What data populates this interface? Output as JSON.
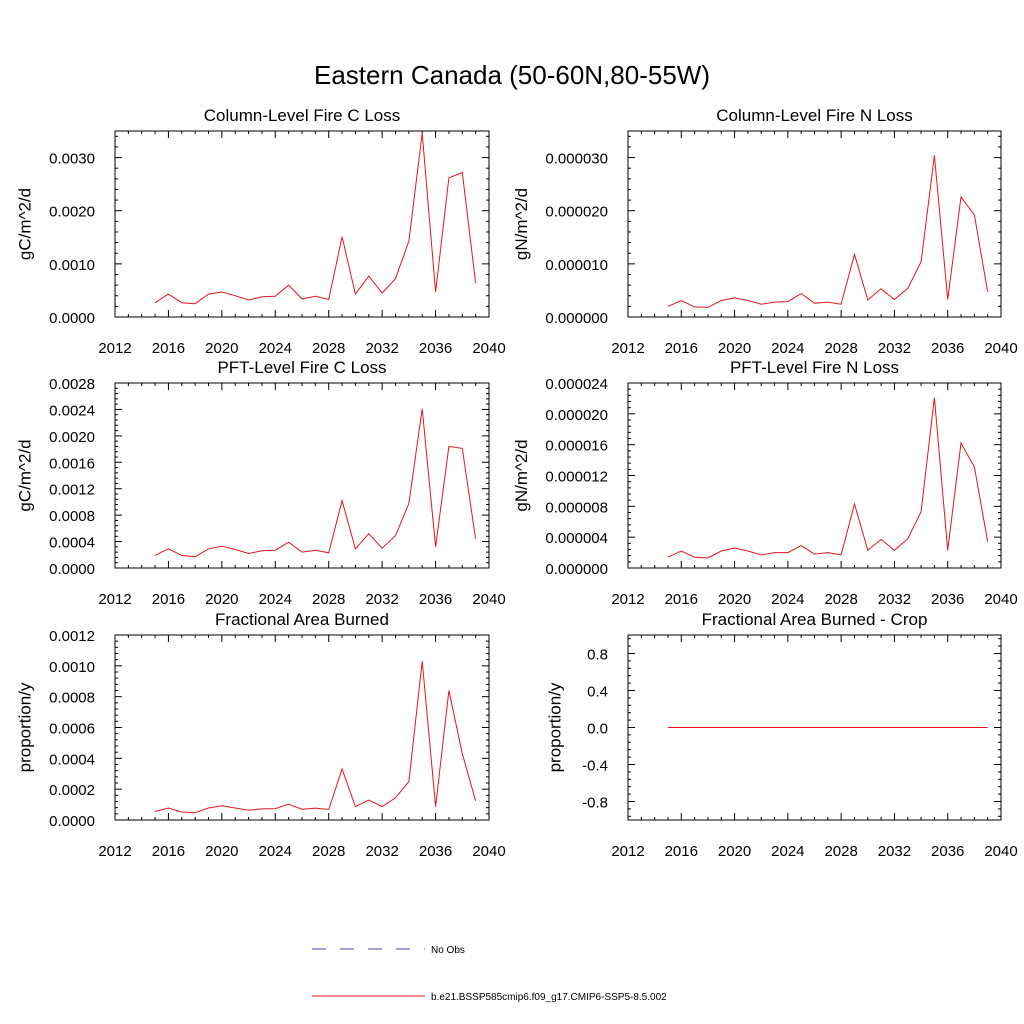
{
  "title": "Eastern Canada (50-60N,80-55W)",
  "legend": [
    {
      "label": "No Obs",
      "color": "#4a4aa8",
      "style": "dashed"
    },
    {
      "label": "b.e21.BSSP585cmip6.f09_g17.CMIP6-SSP5-8.5.002",
      "color": "#e8141b",
      "style": "solid"
    }
  ],
  "chart_data": [
    {
      "type": "line",
      "title": "Column-Level Fire C Loss",
      "ylabel": "gC/m^2/d",
      "xlim": [
        2012,
        2040
      ],
      "ylim": [
        0,
        0.0035
      ],
      "x_ticks": [
        2012,
        2016,
        2020,
        2024,
        2028,
        2032,
        2036,
        2040
      ],
      "x_ticklabels": [
        "2012",
        "2016",
        "2020",
        "2024",
        "2028",
        "2032",
        "2036",
        "2040"
      ],
      "y_ticks": [
        0,
        0.001,
        0.002,
        0.003
      ],
      "y_ticklabels": [
        "0.0000",
        "0.0010",
        "0.0020",
        "0.0030"
      ],
      "x": [
        2015,
        2016,
        2017,
        2018,
        2019,
        2020,
        2021,
        2022,
        2023,
        2024,
        2025,
        2026,
        2027,
        2028,
        2029,
        2030,
        2031,
        2032,
        2033,
        2034,
        2035,
        2036,
        2037,
        2038,
        2039
      ],
      "series": [
        {
          "name": "b.e21.BSSP585cmip6.f09_g17.CMIP6-SSP5-8.5.002",
          "color": "#e8141b",
          "values": [
            0.00027,
            0.00043,
            0.00027,
            0.00025,
            0.00043,
            0.00047,
            0.0004,
            0.00032,
            0.00038,
            0.00039,
            0.0006,
            0.00034,
            0.00039,
            0.00033,
            0.00151,
            0.00043,
            0.00077,
            0.00045,
            0.00072,
            0.00143,
            0.00346,
            0.00047,
            0.00262,
            0.00272,
            0.00064
          ]
        }
      ]
    },
    {
      "type": "line",
      "title": "Column-Level Fire N Loss",
      "ylabel": "gN/m^2/d",
      "xlim": [
        2012,
        2040
      ],
      "ylim": [
        0,
        3.5e-05
      ],
      "x_ticks": [
        2012,
        2016,
        2020,
        2024,
        2028,
        2032,
        2036,
        2040
      ],
      "x_ticklabels": [
        "2012",
        "2016",
        "2020",
        "2024",
        "2028",
        "2032",
        "2036",
        "2040"
      ],
      "y_ticks": [
        0,
        1e-05,
        2e-05,
        3e-05
      ],
      "y_ticklabels": [
        "0.000000",
        "0.000010",
        "0.000020",
        "0.000030"
      ],
      "x": [
        2015,
        2016,
        2017,
        2018,
        2019,
        2020,
        2021,
        2022,
        2023,
        2024,
        2025,
        2026,
        2027,
        2028,
        2029,
        2030,
        2031,
        2032,
        2033,
        2034,
        2035,
        2036,
        2037,
        2038,
        2039
      ],
      "series": [
        {
          "name": "b.e21.BSSP585cmip6.f09_g17.CMIP6-SSP5-8.5.002",
          "color": "#e8141b",
          "values": [
            2e-06,
            3.1e-06,
            1.9e-06,
            1.8e-06,
            3.1e-06,
            3.6e-06,
            3.1e-06,
            2.4e-06,
            2.8e-06,
            2.9e-06,
            4.4e-06,
            2.6e-06,
            2.8e-06,
            2.4e-06,
            1.18e-05,
            3.2e-06,
            5.3e-06,
            3.3e-06,
            5.4e-06,
            1.04e-05,
            3.04e-05,
            3.3e-06,
            2.26e-05,
            1.92e-05,
            4.7e-06
          ]
        }
      ]
    },
    {
      "type": "line",
      "title": "PFT-Level Fire C Loss",
      "ylabel": "gC/m^2/d",
      "xlim": [
        2012,
        2040
      ],
      "ylim": [
        0,
        0.0028
      ],
      "x_ticks": [
        2012,
        2016,
        2020,
        2024,
        2028,
        2032,
        2036,
        2040
      ],
      "x_ticklabels": [
        "2012",
        "2016",
        "2020",
        "2024",
        "2028",
        "2032",
        "2036",
        "2040"
      ],
      "y_ticks": [
        0,
        0.0004,
        0.0008,
        0.0012,
        0.0016,
        0.002,
        0.0024,
        0.0028
      ],
      "y_ticklabels": [
        "0.0000",
        "0.0004",
        "0.0008",
        "0.0012",
        "0.0016",
        "0.0020",
        "0.0024",
        "0.0028"
      ],
      "x": [
        2015,
        2016,
        2017,
        2018,
        2019,
        2020,
        2021,
        2022,
        2023,
        2024,
        2025,
        2026,
        2027,
        2028,
        2029,
        2030,
        2031,
        2032,
        2033,
        2034,
        2035,
        2036,
        2037,
        2038,
        2039
      ],
      "series": [
        {
          "name": "b.e21.BSSP585cmip6.f09_g17.CMIP6-SSP5-8.5.002",
          "color": "#e8141b",
          "values": [
            0.00019,
            0.00029,
            0.00019,
            0.00017,
            0.00029,
            0.00033,
            0.00028,
            0.00022,
            0.00026,
            0.00027,
            0.00039,
            0.00024,
            0.00027,
            0.00023,
            0.00102,
            0.00029,
            0.00052,
            0.0003,
            0.00049,
            0.00098,
            0.00241,
            0.00032,
            0.00184,
            0.00181,
            0.00044
          ]
        }
      ]
    },
    {
      "type": "line",
      "title": "PFT-Level Fire N Loss",
      "ylabel": "gN/m^2/d",
      "xlim": [
        2012,
        2040
      ],
      "ylim": [
        0,
        2.4e-05
      ],
      "x_ticks": [
        2012,
        2016,
        2020,
        2024,
        2028,
        2032,
        2036,
        2040
      ],
      "x_ticklabels": [
        "2012",
        "2016",
        "2020",
        "2024",
        "2028",
        "2032",
        "2036",
        "2040"
      ],
      "y_ticks": [
        0,
        4e-06,
        8e-06,
        1.2e-05,
        1.6e-05,
        2e-05,
        2.4e-05
      ],
      "y_ticklabels": [
        "0.000000",
        "0.000004",
        "0.000008",
        "0.000012",
        "0.000016",
        "0.000020",
        "0.000024"
      ],
      "x": [
        2015,
        2016,
        2017,
        2018,
        2019,
        2020,
        2021,
        2022,
        2023,
        2024,
        2025,
        2026,
        2027,
        2028,
        2029,
        2030,
        2031,
        2032,
        2033,
        2034,
        2035,
        2036,
        2037,
        2038,
        2039
      ],
      "series": [
        {
          "name": "b.e21.BSSP585cmip6.f09_g17.CMIP6-SSP5-8.5.002",
          "color": "#e8141b",
          "values": [
            1.4e-06,
            2.2e-06,
            1.4e-06,
            1.3e-06,
            2.2e-06,
            2.6e-06,
            2.2e-06,
            1.7e-06,
            2e-06,
            2e-06,
            2.9e-06,
            1.8e-06,
            2e-06,
            1.7e-06,
            8.3e-06,
            2.3e-06,
            3.7e-06,
            2.3e-06,
            3.8e-06,
            7.3e-06,
            2.21e-05,
            2.3e-06,
            1.62e-05,
            1.31e-05,
            3.4e-06
          ]
        }
      ]
    },
    {
      "type": "line",
      "title": "Fractional Area Burned",
      "ylabel": "proportion/y",
      "xlim": [
        2012,
        2040
      ],
      "ylim": [
        0,
        0.0012
      ],
      "x_ticks": [
        2012,
        2016,
        2020,
        2024,
        2028,
        2032,
        2036,
        2040
      ],
      "x_ticklabels": [
        "2012",
        "2016",
        "2020",
        "2024",
        "2028",
        "2032",
        "2036",
        "2040"
      ],
      "y_ticks": [
        0,
        0.0002,
        0.0004,
        0.0006,
        0.0008,
        0.001,
        0.0012
      ],
      "y_ticklabels": [
        "0.0000",
        "0.0002",
        "0.0004",
        "0.0006",
        "0.0008",
        "0.0010",
        "0.0012"
      ],
      "x": [
        2015,
        2016,
        2017,
        2018,
        2019,
        2020,
        2021,
        2022,
        2023,
        2024,
        2025,
        2026,
        2027,
        2028,
        2029,
        2030,
        2031,
        2032,
        2033,
        2034,
        2035,
        2036,
        2037,
        2038,
        2039
      ],
      "series": [
        {
          "name": "b.e21.BSSP585cmip6.f09_g17.CMIP6-SSP5-8.5.002",
          "color": "#e8141b",
          "values": [
            5.5e-05,
            7.8e-05,
            5.2e-05,
            4.7e-05,
            7.8e-05,
            9.3e-05,
            7.8e-05,
            6.3e-05,
            7.2e-05,
            7.4e-05,
            0.000103,
            6.9e-05,
            7.7e-05,
            6.8e-05,
            0.00033,
            8.6e-05,
            0.00013,
            8.7e-05,
            0.000144,
            0.00025,
            0.00103,
            8.7e-05,
            0.00084,
            0.00043,
            0.000125
          ]
        }
      ]
    },
    {
      "type": "line",
      "title": "Fractional Area Burned - Crop",
      "ylabel": "proportion/y",
      "xlim": [
        2012,
        2040
      ],
      "ylim": [
        -1,
        1
      ],
      "x_ticks": [
        2012,
        2016,
        2020,
        2024,
        2028,
        2032,
        2036,
        2040
      ],
      "x_ticklabels": [
        "2012",
        "2016",
        "2020",
        "2024",
        "2028",
        "2032",
        "2036",
        "2040"
      ],
      "y_ticks": [
        -0.8,
        -0.4,
        0,
        0.4,
        0.8
      ],
      "y_ticklabels": [
        "-0.8",
        "-0.4",
        "0.0",
        "0.4",
        "0.8"
      ],
      "x": [
        2015,
        2016,
        2017,
        2018,
        2019,
        2020,
        2021,
        2022,
        2023,
        2024,
        2025,
        2026,
        2027,
        2028,
        2029,
        2030,
        2031,
        2032,
        2033,
        2034,
        2035,
        2036,
        2037,
        2038,
        2039
      ],
      "series": [
        {
          "name": "b.e21.BSSP585cmip6.f09_g17.CMIP6-SSP5-8.5.002",
          "color": "#e8141b",
          "values": [
            0,
            0,
            0,
            0,
            0,
            0,
            0,
            0,
            0,
            0,
            0,
            0,
            0,
            0,
            0,
            0,
            0,
            0,
            0,
            0,
            0,
            0,
            0,
            0,
            0
          ]
        }
      ]
    }
  ]
}
